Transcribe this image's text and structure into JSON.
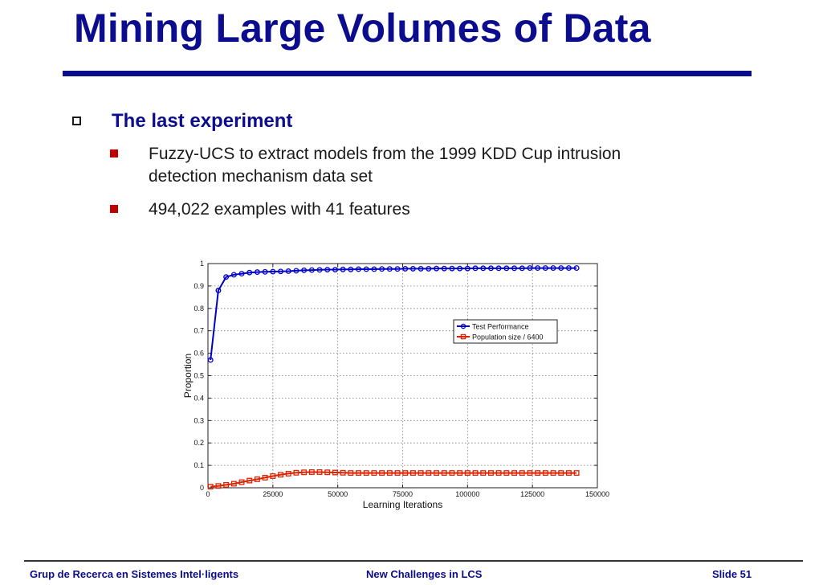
{
  "slide": {
    "title": "Mining Large Volumes of Data",
    "heading": "The last experiment",
    "bullets": [
      {
        "line1": "Fuzzy-UCS to extract models from the 1999 KDD Cup intrusion",
        "line2": "detection mechanism data set"
      },
      {
        "line1": "494,022 examples with 41 features"
      }
    ],
    "footer": {
      "left": "Grup de Recerca en Sistemes Intel·ligents",
      "center": "New Challenges in LCS",
      "right": "Slide 51"
    }
  },
  "colors": {
    "title": "#0c0c8e",
    "bullet": "#c00000",
    "series1": "#0000cc",
    "series2": "#dd2200"
  },
  "chart_data": {
    "type": "line",
    "title": "",
    "xlabel": "Learning Iterations",
    "ylabel": "Proportion",
    "xlim": [
      0,
      150000
    ],
    "ylim": [
      0,
      1
    ],
    "xticks": [
      0,
      25000,
      50000,
      75000,
      100000,
      125000,
      150000
    ],
    "xtick_labels": [
      "0",
      "25000",
      "50000",
      "75000",
      "100000",
      "125000",
      "150000"
    ],
    "yticks": [
      0,
      0.1,
      0.2,
      0.3,
      0.4,
      0.5,
      0.6,
      0.7,
      0.8,
      0.9,
      1
    ],
    "ytick_labels": [
      "0",
      "0.1",
      "0.2",
      "0.3",
      "0.4",
      "0.5",
      "0.6",
      "0.7",
      "0.8",
      "0.9",
      "1"
    ],
    "grid": true,
    "legend_position": "right",
    "x": [
      1000,
      4000,
      7000,
      10000,
      13000,
      16000,
      19000,
      22000,
      25000,
      28000,
      31000,
      34000,
      37000,
      40000,
      43000,
      46000,
      49000,
      52000,
      55000,
      58000,
      61000,
      64000,
      67000,
      70000,
      73000,
      76000,
      79000,
      82000,
      85000,
      88000,
      91000,
      94000,
      97000,
      100000,
      103000,
      106000,
      109000,
      112000,
      115000,
      118000,
      121000,
      124000,
      127000,
      130000,
      133000,
      136000,
      139000,
      142000
    ],
    "series": [
      {
        "name": "Test Performance",
        "color": "#0000cc",
        "marker": "circle",
        "values": [
          0.57,
          0.88,
          0.94,
          0.95,
          0.955,
          0.96,
          0.962,
          0.963,
          0.964,
          0.965,
          0.966,
          0.968,
          0.97,
          0.971,
          0.972,
          0.973,
          0.973,
          0.974,
          0.974,
          0.975,
          0.975,
          0.975,
          0.976,
          0.976,
          0.976,
          0.977,
          0.977,
          0.977,
          0.977,
          0.978,
          0.978,
          0.978,
          0.978,
          0.978,
          0.979,
          0.979,
          0.979,
          0.979,
          0.979,
          0.979,
          0.979,
          0.98,
          0.98,
          0.98,
          0.98,
          0.98,
          0.98,
          0.98
        ]
      },
      {
        "name": "Population size / 6400",
        "color": "#dd2200",
        "marker": "square",
        "values": [
          0.005,
          0.008,
          0.013,
          0.018,
          0.025,
          0.032,
          0.038,
          0.045,
          0.052,
          0.058,
          0.063,
          0.067,
          0.069,
          0.07,
          0.07,
          0.069,
          0.068,
          0.067,
          0.066,
          0.066,
          0.066,
          0.066,
          0.066,
          0.066,
          0.066,
          0.066,
          0.066,
          0.066,
          0.066,
          0.066,
          0.066,
          0.066,
          0.066,
          0.066,
          0.066,
          0.066,
          0.066,
          0.066,
          0.066,
          0.066,
          0.066,
          0.066,
          0.066,
          0.066,
          0.066,
          0.066,
          0.066,
          0.066
        ]
      }
    ]
  }
}
